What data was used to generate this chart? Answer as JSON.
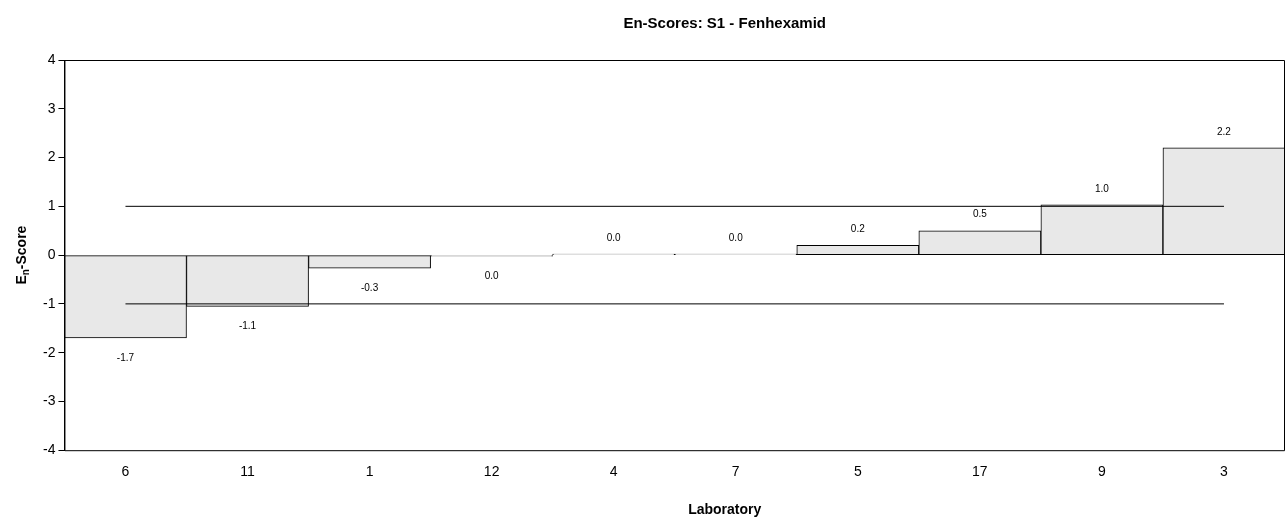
{
  "chart_data": {
    "type": "bar",
    "title": "En-Scores: S1 - Fenhexamid",
    "xlabel": "Laboratory",
    "ylabel": "E$_{n}$-Score",
    "categories": [
      "6",
      "11",
      "1",
      "12",
      "4",
      "7",
      "5",
      "17",
      "9",
      "3"
    ],
    "values": [
      -1.7,
      -1.05,
      -0.27,
      -0.02,
      0.02,
      0.02,
      0.2,
      0.5,
      1.03,
      2.2
    ],
    "value_labels": [
      "-1.7",
      "-1.1",
      "-0.3",
      "0.0",
      "0.0",
      "0.0",
      "0.2",
      "0.5",
      "1.0",
      "2.2"
    ],
    "color": "#e8e8e8",
    "ylim": [
      -4,
      4
    ],
    "yticks": [
      -4,
      -3,
      -2,
      -1,
      0,
      1,
      2,
      3,
      4
    ],
    "grid": false,
    "legend": false,
    "ref_lines": [
      {
        "axis": "y",
        "value": 1,
        "color": "#000000"
      },
      {
        "axis": "y",
        "value": -1,
        "color": "#000000"
      }
    ]
  }
}
